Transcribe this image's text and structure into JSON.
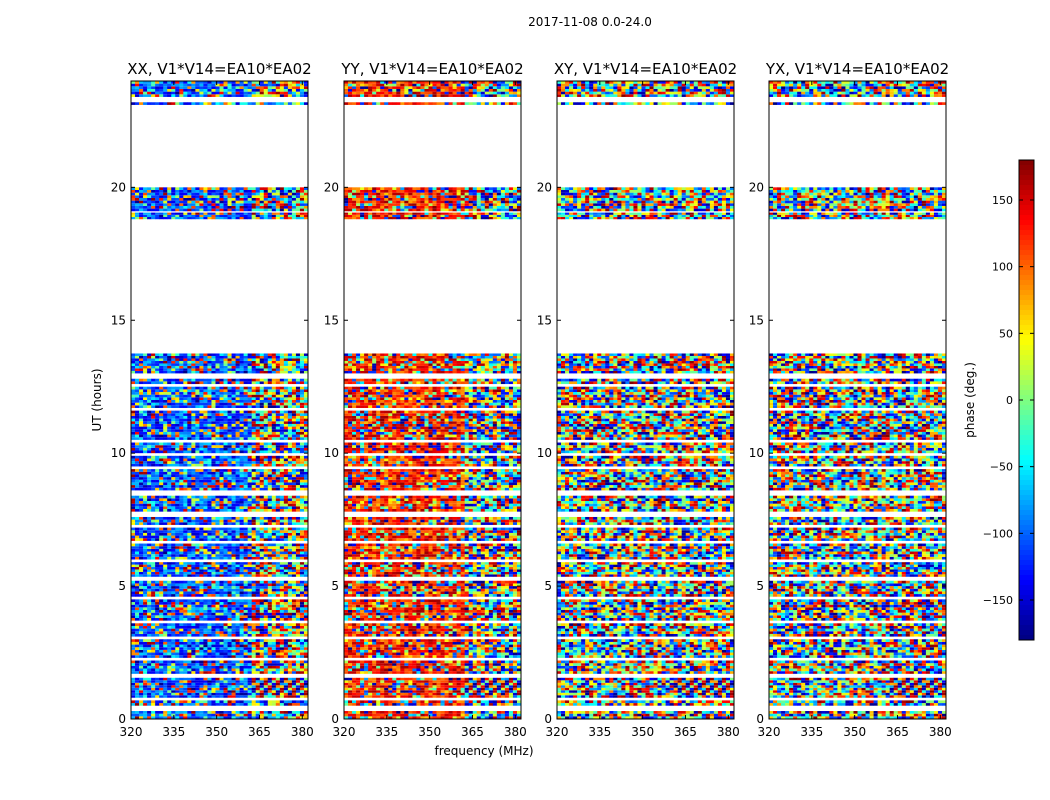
{
  "figure": {
    "suptitle": "2017-11-08 0.0-24.0",
    "xlabel": "frequency (MHz)",
    "ylabel": "UT (hours)"
  },
  "chart_data": {
    "type": "heatmap",
    "description_free": true,
    "x_range": [
      320,
      382
    ],
    "x_ticks": [
      320,
      335,
      350,
      365,
      380
    ],
    "y_range": [
      0,
      24
    ],
    "y_ticks": [
      0,
      5,
      10,
      15,
      20
    ],
    "panels": [
      {
        "title": "XX, V1*V14=EA10*EA02",
        "pol": "XX",
        "biased": true
      },
      {
        "title": "YY, V1*V14=EA10*EA02",
        "pol": "YY",
        "biased": true
      },
      {
        "title": "XY, V1*V14=EA10*EA02",
        "pol": "XY",
        "biased": false
      },
      {
        "title": "YX, V1*V14=EA10*EA02",
        "pol": "YX",
        "biased": false
      }
    ],
    "data_segments_hours": [
      [
        0.0,
        0.3
      ],
      [
        0.5,
        0.7
      ],
      [
        0.8,
        1.55
      ],
      [
        1.7,
        2.2
      ],
      [
        2.3,
        3.0
      ],
      [
        3.1,
        3.6
      ],
      [
        3.7,
        4.5
      ],
      [
        4.6,
        5.2
      ],
      [
        5.35,
        5.9
      ],
      [
        6.0,
        6.6
      ],
      [
        6.7,
        7.2
      ],
      [
        7.3,
        7.6
      ],
      [
        7.8,
        8.4
      ],
      [
        8.6,
        9.4
      ],
      [
        9.5,
        9.9
      ],
      [
        10.0,
        10.4
      ],
      [
        10.5,
        11.6
      ],
      [
        11.7,
        12.5
      ],
      [
        12.6,
        12.8
      ],
      [
        13.0,
        13.75
      ],
      [
        18.8,
        19.05
      ],
      [
        19.1,
        20.0
      ],
      [
        23.1,
        23.2
      ],
      [
        23.4,
        24.0
      ]
    ],
    "colorbar": {
      "label": "phase (deg.)",
      "range": [
        -180,
        180
      ],
      "ticks": [
        150,
        100,
        50,
        0,
        -50,
        -100,
        -150
      ],
      "tick_labels": [
        "150",
        "100",
        "50",
        "0",
        "−50",
        "−100",
        "−150"
      ],
      "colormap": "jet"
    }
  }
}
